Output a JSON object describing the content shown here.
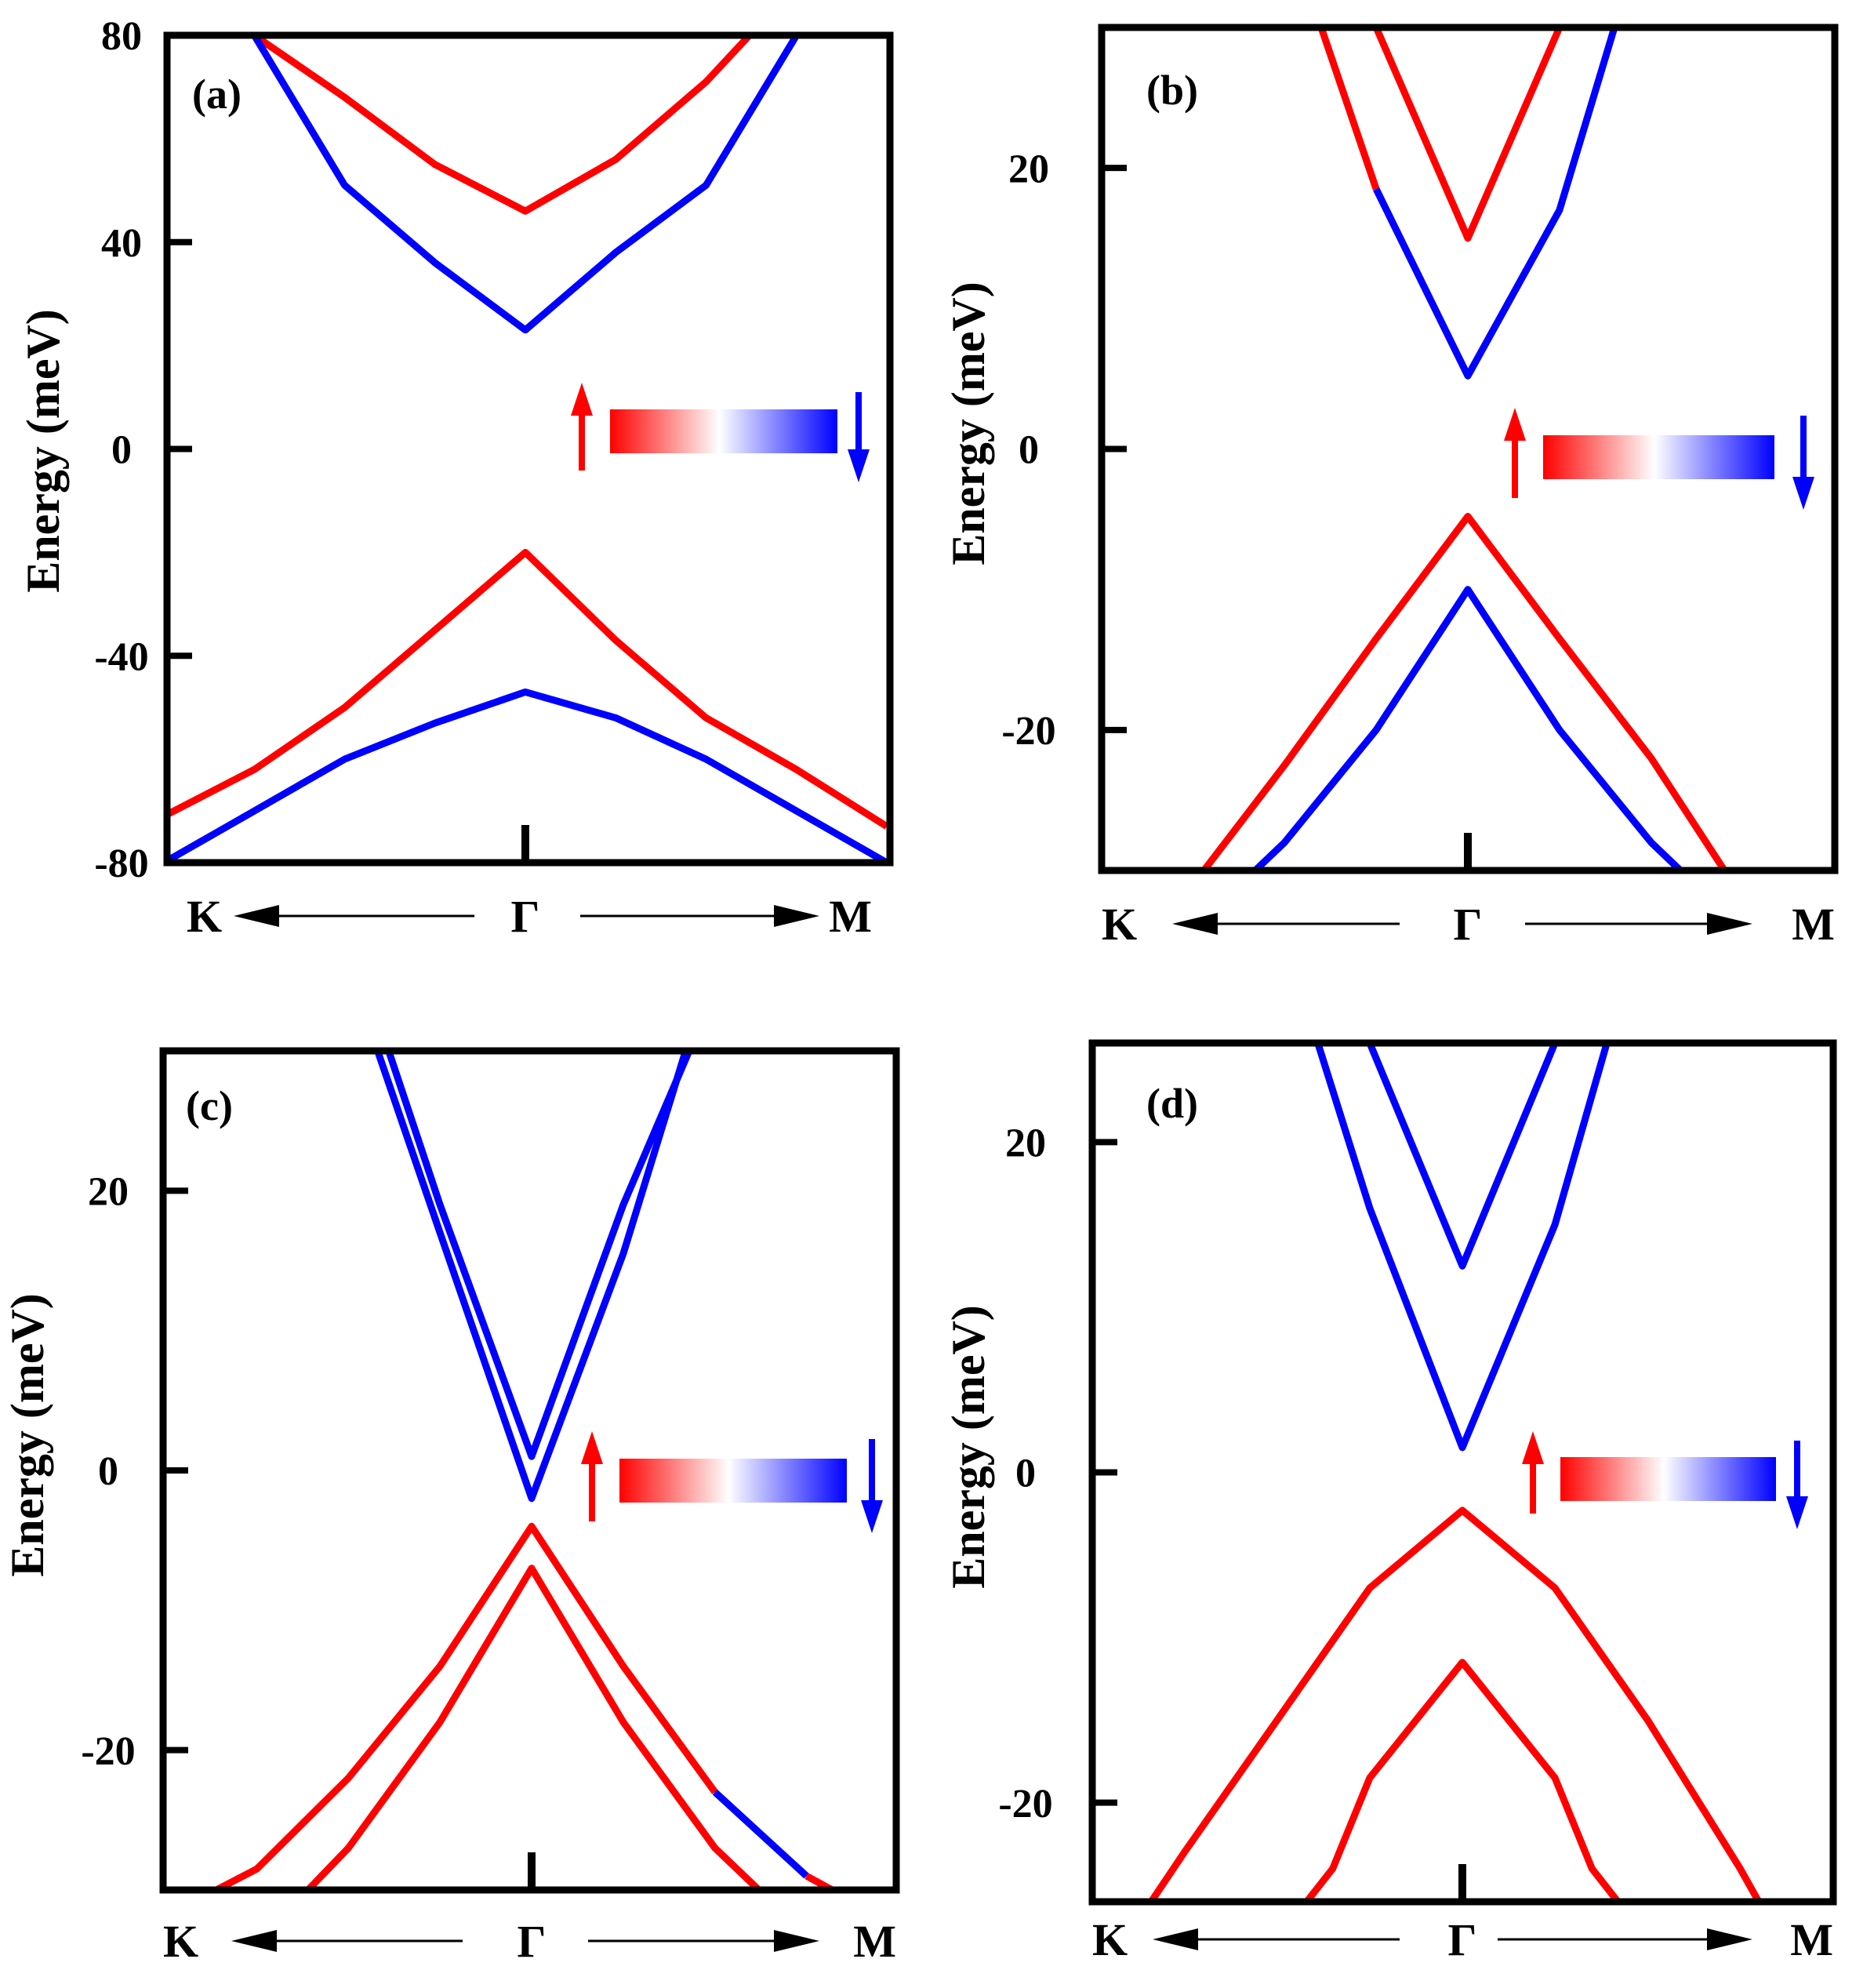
{
  "figure": {
    "colors": {
      "spin_up": "#ff0000",
      "spin_down": "#0000ff",
      "frame": "#000000",
      "kpath_arrow": "#000000"
    }
  },
  "chart_data": [
    {
      "type": "line",
      "panel_label": "(a)",
      "ylabel": "Energy (meV)",
      "ylim": [
        -80,
        80
      ],
      "yticks": [
        80,
        40,
        0,
        -40,
        -80
      ],
      "ytick_labels": [
        "80",
        "40",
        "0",
        "-40",
        "-80"
      ],
      "xticks": [
        "K",
        "Γ",
        "M"
      ],
      "xlim": [
        -1,
        1
      ],
      "legend": {
        "up_symbol": "↑",
        "down_symbol": "↓",
        "meaning": [
          "spin up",
          "spin down"
        ]
      },
      "series": [
        {
          "name": "conduction spin-up",
          "color": "red",
          "x": [
            -0.75,
            -0.5,
            -0.25,
            0,
            0.25,
            0.5,
            0.62
          ],
          "y": [
            80,
            68,
            55,
            46,
            56,
            71,
            80
          ]
        },
        {
          "name": "conduction spin-down",
          "color": "blue",
          "x": [
            -0.75,
            -0.5,
            -0.25,
            0,
            0.25,
            0.5,
            0.75
          ],
          "y": [
            80,
            51,
            36,
            23,
            38,
            51,
            80
          ]
        },
        {
          "name": "valence spin-up",
          "color": "red",
          "x": [
            -1,
            -0.75,
            -0.5,
            -0.25,
            0,
            0.25,
            0.5,
            0.75,
            1
          ],
          "y": [
            -71,
            -62,
            -50,
            -35,
            -20,
            -37,
            -52,
            -62,
            -73
          ]
        },
        {
          "name": "valence spin-down",
          "color": "blue",
          "x": [
            -1,
            -0.75,
            -0.5,
            -0.25,
            0,
            0.25,
            0.5,
            0.75,
            1
          ],
          "y": [
            -80,
            -70,
            -60,
            -53,
            -47,
            -52,
            -60,
            -70,
            -80
          ]
        }
      ]
    },
    {
      "type": "line",
      "panel_label": "(b)",
      "ylabel": "Energy (meV)",
      "ylim": [
        -30,
        30
      ],
      "yticks": [
        20,
        0,
        -20
      ],
      "ytick_labels": [
        "20",
        "0",
        "-20"
      ],
      "xticks": [
        "K",
        "Γ",
        "M"
      ],
      "xlim": [
        -1,
        1
      ],
      "legend": {
        "up_symbol": "↑",
        "down_symbol": "↓",
        "meaning": [
          "spin up",
          "spin down"
        ]
      },
      "series": [
        {
          "name": "conduction outer left",
          "color": "red",
          "x": [
            -0.4,
            -0.25
          ],
          "y": [
            30,
            18.5
          ]
        },
        {
          "name": "conduction outer",
          "color": "blue",
          "x": [
            -0.25,
            0,
            0.25,
            0.4
          ],
          "y": [
            18.5,
            5.2,
            17,
            30
          ]
        },
        {
          "name": "conduction inner",
          "color": "red",
          "x": [
            -0.25,
            0,
            0.25
          ],
          "y": [
            30,
            15,
            30
          ]
        },
        {
          "name": "valence upper",
          "color": "red",
          "x": [
            -0.72,
            -0.5,
            -0.25,
            0,
            0.25,
            0.5,
            0.7
          ],
          "y": [
            -30,
            -22.5,
            -13.5,
            -4.8,
            -13.5,
            -22,
            -30
          ]
        },
        {
          "name": "valence lower",
          "color": "blue",
          "x": [
            -0.58,
            -0.5,
            -0.25,
            0,
            0.25,
            0.5,
            0.58
          ],
          "y": [
            -30,
            -28,
            -20,
            -10,
            -20,
            -28,
            -30
          ]
        }
      ]
    },
    {
      "type": "line",
      "panel_label": "(c)",
      "ylabel": "Energy (meV)",
      "ylim": [
        -30,
        30
      ],
      "yticks": [
        20,
        0,
        -20
      ],
      "ytick_labels": [
        "20",
        "0",
        "-20"
      ],
      "xticks": [
        "K",
        "Γ",
        "M"
      ],
      "xlim": [
        -1,
        1
      ],
      "legend": {
        "up_symbol": "↑",
        "down_symbol": "↓",
        "meaning": [
          "spin up",
          "spin down"
        ]
      },
      "series": [
        {
          "name": "conduction outer",
          "color": "blue",
          "x": [
            -0.42,
            -0.25,
            0,
            0.25,
            0.42
          ],
          "y": [
            30,
            17,
            -2,
            15.5,
            30
          ]
        },
        {
          "name": "conduction inner",
          "color": "blue",
          "x": [
            -0.39,
            -0.25,
            0,
            0.25,
            0.43
          ],
          "y": [
            30,
            19,
            1,
            19,
            30
          ]
        },
        {
          "name": "valence upper",
          "color": "red",
          "x": [
            -0.86,
            -0.75,
            -0.5,
            -0.25,
            0,
            0.25,
            0.5
          ],
          "y": [
            -30,
            -28.5,
            -22,
            -14,
            -4,
            -14,
            -23
          ]
        },
        {
          "name": "valence upper tail",
          "color": "blue",
          "x": [
            0.5,
            0.75
          ],
          "y": [
            -23,
            -29
          ]
        },
        {
          "name": "valence upper end",
          "color": "red",
          "x": [
            0.75,
            0.82
          ],
          "y": [
            -29,
            -30
          ]
        },
        {
          "name": "valence lower",
          "color": "red",
          "x": [
            -0.61,
            -0.5,
            -0.25,
            0,
            0.25,
            0.5,
            0.62
          ],
          "y": [
            -30,
            -27,
            -18,
            -7,
            -18,
            -27,
            -30
          ]
        }
      ]
    },
    {
      "type": "line",
      "panel_label": "(d)",
      "ylabel": "Energy (meV)",
      "ylim": [
        -26,
        26
      ],
      "yticks": [
        20,
        0,
        -20
      ],
      "ytick_labels": [
        "20",
        "0",
        "-20"
      ],
      "xticks": [
        "K",
        "Γ",
        "M"
      ],
      "xlim": [
        -1,
        1
      ],
      "legend": {
        "up_symbol": "↑",
        "down_symbol": "↓",
        "meaning": [
          "spin up",
          "spin down"
        ]
      },
      "series": [
        {
          "name": "conduction outer",
          "color": "blue",
          "x": [
            -0.39,
            -0.25,
            0,
            0.25,
            0.39
          ],
          "y": [
            26,
            16,
            1.5,
            15,
            26
          ]
        },
        {
          "name": "conduction inner",
          "color": "blue",
          "x": [
            -0.25,
            0,
            0.25
          ],
          "y": [
            26,
            12.5,
            26
          ]
        },
        {
          "name": "valence upper",
          "color": "red",
          "x": [
            -0.84,
            -0.75,
            -0.5,
            -0.25,
            0,
            0.25,
            0.5,
            0.75,
            0.8
          ],
          "y": [
            -26,
            -23,
            -15,
            -7,
            -2.3,
            -7,
            -15,
            -24,
            -26
          ]
        },
        {
          "name": "valence lower",
          "color": "red",
          "x": [
            -0.42,
            -0.35,
            -0.25,
            0,
            0.25,
            0.35,
            0.42
          ],
          "y": [
            -26,
            -24,
            -18.5,
            -11.5,
            -18.5,
            -24,
            -26
          ]
        }
      ]
    }
  ]
}
